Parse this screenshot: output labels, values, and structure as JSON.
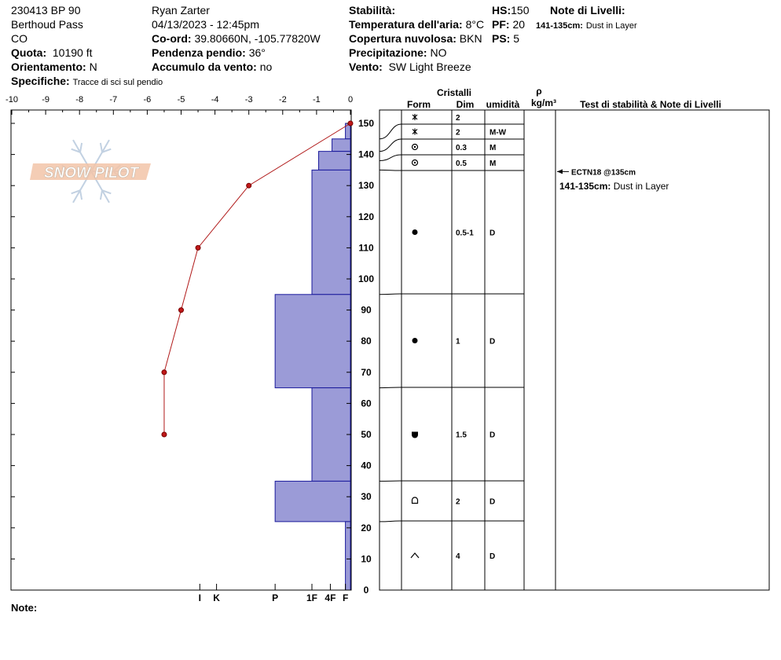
{
  "header": {
    "col1": {
      "site_code": "230413 BP 90",
      "location": "Berthoud Pass",
      "state": "CO",
      "elevation_label": "Quota:",
      "elevation_value": "10190 ft",
      "aspect_label": "Orientamento:",
      "aspect_value": "N",
      "specifics_label": "Specifiche:",
      "specifics_value": "Tracce di sci sul pendio"
    },
    "col2": {
      "observer": "Ryan Zarter",
      "datetime": "04/13/2023 - 12:45pm",
      "coords_label": "Co-ord:",
      "coords_value": "39.80660N, -105.77820W",
      "slope_label": "Pendenza pendio:",
      "slope_value": "36°",
      "wind_loading_label": "Accumulo da vento:",
      "wind_loading_value": "no"
    },
    "col3": {
      "stability_label": "Stabilità:",
      "air_temp_label": "Temperatura dell'aria:",
      "air_temp_value": "8°C",
      "cloud_label": "Copertura nuvolosa:",
      "cloud_value": "BKN",
      "precip_label": "Precipitazione:",
      "precip_value": "NO",
      "wind_label": "Vento:",
      "wind_value": "SW Light Breeze"
    },
    "col4": {
      "hs_label": "HS:",
      "hs_value": "150",
      "pf_label": "PF:",
      "pf_value": "20",
      "ps_label": "PS:",
      "ps_value": "5"
    },
    "col5": {
      "layer_notes_label": "Note di Livelli:",
      "layer_note_range": "141-135cm:",
      "layer_note_text": "Dust in Layer"
    }
  },
  "footer": {
    "note_label": "Note:"
  },
  "logo_text": "SNOW PILOT",
  "table": {
    "header_crystals": "Cristalli",
    "header_form": "Form",
    "header_dim": "Dim",
    "header_moisture": "umidità",
    "header_rho": "ρ",
    "header_density_unit": "kg/m³",
    "header_tests": "Test di stabilità & Note di Livelli"
  },
  "chart_data": {
    "type": "snow_profile",
    "y_axis": {
      "range": [
        0,
        150
      ],
      "ticks": [
        0,
        10,
        20,
        30,
        40,
        50,
        60,
        70,
        80,
        90,
        100,
        110,
        120,
        130,
        140,
        150
      ]
    },
    "temp_axis": {
      "range": [
        -10,
        0
      ],
      "ticks": [
        -10,
        -9,
        -8,
        -7,
        -6,
        -5,
        -4,
        -3,
        -2,
        -1,
        0
      ]
    },
    "hardness_axis": {
      "labels": [
        "I",
        "K",
        "P",
        "1F",
        "4F",
        "F"
      ],
      "values": [
        9,
        8,
        4.5,
        2.3,
        1.2,
        0.3
      ]
    },
    "temperature_profile": [
      {
        "height": 150,
        "temp": 0
      },
      {
        "height": 130,
        "temp": -3
      },
      {
        "height": 110,
        "temp": -4.5
      },
      {
        "height": 90,
        "temp": -5
      },
      {
        "height": 70,
        "temp": -5.5
      },
      {
        "height": 50,
        "temp": -5.5
      }
    ],
    "hardness_layers": [
      {
        "top": 150,
        "bottom": 145,
        "hardness": 0.3
      },
      {
        "top": 145,
        "bottom": 141,
        "hardness": 1.1
      },
      {
        "top": 141,
        "bottom": 135,
        "hardness": 1.9
      },
      {
        "top": 135,
        "bottom": 95,
        "hardness": 2.3
      },
      {
        "top": 95,
        "bottom": 65,
        "hardness": 4.5
      },
      {
        "top": 65,
        "bottom": 35,
        "hardness": 2.3
      },
      {
        "top": 35,
        "bottom": 22,
        "hardness": 4.5
      },
      {
        "top": 22,
        "bottom": 0,
        "hardness": 0.3
      }
    ],
    "layers": [
      {
        "top": 150,
        "bottom": 145,
        "form": "precip-particle",
        "dim": "2",
        "moisture": ""
      },
      {
        "top": 145,
        "bottom": 141,
        "form": "precip-particle",
        "dim": "2",
        "moisture": "M-W"
      },
      {
        "top": 141,
        "bottom": 138,
        "form": "decomposing",
        "dim": "0.3",
        "moisture": "M"
      },
      {
        "top": 138,
        "bottom": 135,
        "form": "decomposing",
        "dim": "0.5",
        "moisture": "M"
      },
      {
        "top": 135,
        "bottom": 95,
        "form": "rounded",
        "dim": "0.5-1",
        "moisture": "D"
      },
      {
        "top": 95,
        "bottom": 65,
        "form": "rounded",
        "dim": "1",
        "moisture": "D"
      },
      {
        "top": 65,
        "bottom": 35,
        "form": "faceted-rounding",
        "dim": "1.5",
        "moisture": "D"
      },
      {
        "top": 35,
        "bottom": 22,
        "form": "faceted",
        "dim": "2",
        "moisture": "D"
      },
      {
        "top": 22,
        "bottom": 0,
        "form": "depth-hoar",
        "dim": "4",
        "moisture": "D"
      }
    ],
    "stability_tests": [
      {
        "height": 135,
        "label": "ECTN18 @135cm"
      }
    ],
    "layer_notes": [
      {
        "range": "141-135cm:",
        "text": "Dust in Layer"
      }
    ]
  }
}
